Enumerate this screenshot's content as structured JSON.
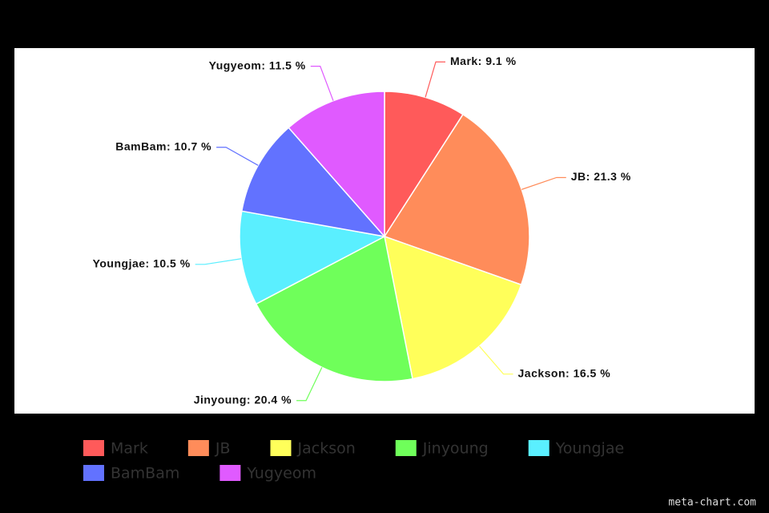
{
  "chart_data": {
    "type": "pie",
    "categories": [
      "Mark",
      "JB",
      "Jackson",
      "Jinyoung",
      "Youngjae",
      "BamBam",
      "Yugyeom"
    ],
    "values": [
      9.1,
      21.3,
      16.5,
      20.4,
      10.5,
      10.7,
      11.5
    ],
    "value_labels": [
      "Mark: 9.1 %",
      "JB: 21.3 %",
      "Jackson: 16.5 %",
      "Jinyoung: 20.4 %",
      "Youngjae: 10.5 %",
      "BamBam: 10.7 %",
      "Yugyeom: 11.5 %"
    ],
    "colors": [
      "#ff5a5a",
      "#ff8c5a",
      "#ffff5a",
      "#6fff5a",
      "#5aefff",
      "#6272ff",
      "#e05aff"
    ],
    "credit": "meta-chart.com"
  }
}
